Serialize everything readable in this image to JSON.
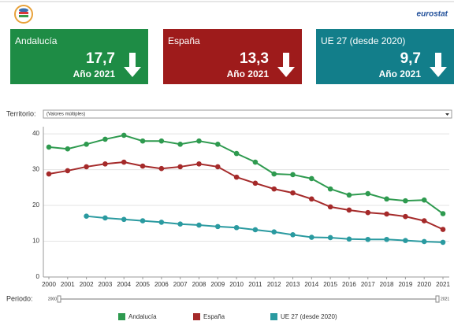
{
  "header": {
    "logo_text": "eurostat"
  },
  "cards": [
    {
      "title": "Andalucía",
      "value": "17,7",
      "period": "Año 2021"
    },
    {
      "title": "España",
      "value": "13,3",
      "period": "Año 2021"
    },
    {
      "title": "UE 27 (desde 2020)",
      "value": "9,7",
      "period": "Año 2021"
    }
  ],
  "filter": {
    "label": "Territorio:",
    "selected": "(Valores múltiples)"
  },
  "chart_data": {
    "type": "line",
    "categories": [
      "2000",
      "2001",
      "2002",
      "2003",
      "2004",
      "2005",
      "2006",
      "2007",
      "2008",
      "2009",
      "2010",
      "2011",
      "2012",
      "2013",
      "2014",
      "2015",
      "2016",
      "2017",
      "2018",
      "2019",
      "2020",
      "2021"
    ],
    "series": [
      {
        "name": "Andalucía",
        "color": "#2e9a4f",
        "values": [
          36.3,
          35.8,
          37.1,
          38.5,
          39.6,
          38.0,
          38.0,
          37.1,
          38.0,
          37.1,
          34.5,
          32.1,
          28.8,
          28.6,
          27.5,
          24.6,
          22.9,
          23.3,
          21.8,
          21.3,
          21.5,
          17.7
        ]
      },
      {
        "name": "España",
        "color": "#a52a2a",
        "values": [
          28.8,
          29.7,
          30.8,
          31.6,
          32.1,
          31.0,
          30.3,
          30.8,
          31.6,
          30.8,
          27.9,
          26.2,
          24.6,
          23.5,
          21.8,
          19.6,
          18.7,
          18.0,
          17.6,
          16.9,
          15.7,
          13.3
        ]
      },
      {
        "name": "UE 27 (desde 2020)",
        "color": "#2a9aa0",
        "values": [
          null,
          null,
          17.0,
          16.5,
          16.1,
          15.7,
          15.3,
          14.8,
          14.5,
          14.1,
          13.8,
          13.2,
          12.6,
          11.8,
          11.1,
          11.0,
          10.6,
          10.5,
          10.5,
          10.2,
          9.9,
          9.7
        ]
      }
    ],
    "ylim": [
      0,
      42
    ],
    "yticks": [
      0,
      10,
      20,
      30,
      40
    ],
    "grid": true
  },
  "period": {
    "label": "Periodo:",
    "from": "2000",
    "to": "2021"
  }
}
